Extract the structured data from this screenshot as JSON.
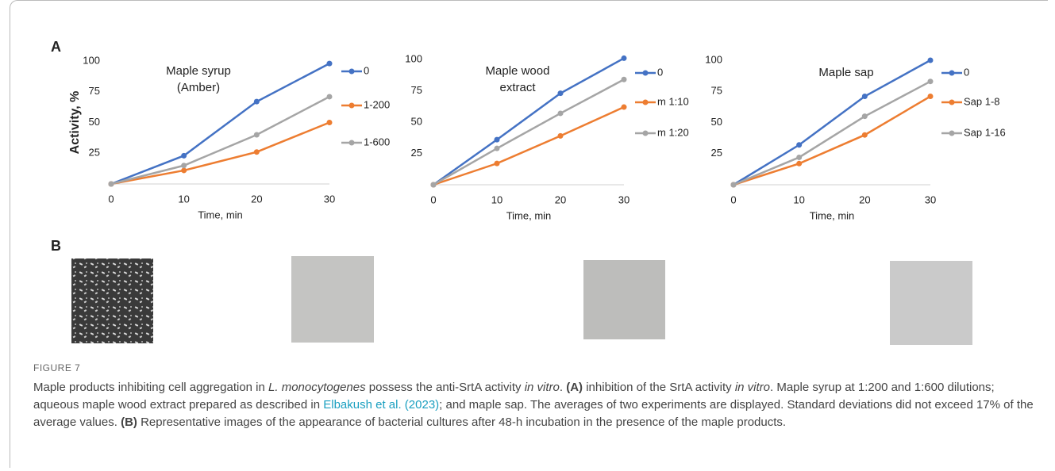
{
  "panel_labels": [
    "A",
    "B"
  ],
  "chart_data": [
    {
      "type": "line",
      "title": [
        "Maple syrup",
        "(Amber)"
      ],
      "ylabel": "Activity, %",
      "xlabel": "Time, min",
      "x": [
        0,
        10,
        20,
        30
      ],
      "xlim": [
        0,
        30
      ],
      "xticks": [
        0,
        10,
        20,
        30
      ],
      "ylim": [
        0,
        100
      ],
      "yticks": [
        25,
        50,
        75,
        100
      ],
      "grid": false,
      "series": [
        {
          "name": "0",
          "color": "#4472c4",
          "values": [
            0,
            23,
            67,
            98
          ]
        },
        {
          "name": "1-200",
          "color": "#ed7d31",
          "values": [
            0,
            11,
            26,
            50
          ]
        },
        {
          "name": "1-600",
          "color": "#a5a5a5",
          "values": [
            0,
            15,
            40,
            71
          ]
        }
      ]
    },
    {
      "type": "line",
      "title": [
        "Maple wood",
        "extract"
      ],
      "xlabel": "Time, min",
      "x": [
        0,
        10,
        20,
        30
      ],
      "xlim": [
        0,
        30
      ],
      "xticks": [
        0,
        10,
        20,
        30
      ],
      "ylim": [
        0,
        100
      ],
      "yticks": [
        25,
        50,
        75,
        100
      ],
      "grid": false,
      "series": [
        {
          "name": "0",
          "color": "#4472c4",
          "values": [
            0,
            36,
            73,
            101
          ]
        },
        {
          "name": "m 1:10",
          "color": "#ed7d31",
          "values": [
            0,
            17,
            39,
            62
          ]
        },
        {
          "name": "m 1:20",
          "color": "#a5a5a5",
          "values": [
            0,
            29,
            57,
            84
          ]
        }
      ]
    },
    {
      "type": "line",
      "title": [
        "Maple sap"
      ],
      "xlabel": "Time, min",
      "x": [
        0,
        10,
        20,
        30
      ],
      "xlim": [
        0,
        30
      ],
      "xticks": [
        0,
        10,
        20,
        30
      ],
      "ylim": [
        0,
        100
      ],
      "yticks": [
        25,
        50,
        75,
        100
      ],
      "grid": false,
      "series": [
        {
          "name": "0",
          "color": "#4472c4",
          "values": [
            0,
            32,
            71,
            100
          ]
        },
        {
          "name": "Sap 1-8",
          "color": "#ed7d31",
          "values": [
            0,
            17,
            40,
            71
          ]
        },
        {
          "name": "Sap 1-16",
          "color": "#a5a5a5",
          "values": [
            0,
            22,
            55,
            83
          ]
        }
      ]
    }
  ],
  "figure_label": "FIGURE 7",
  "caption": [
    "Maple products inhibiting cell aggregation in ",
    "L. monocytogenes",
    " possess the anti-SrtA activity ",
    "in vitro",
    ". ",
    "(A)",
    " inhibition of the SrtA activity ",
    "in vitro",
    ". Maple syrup at 1:200 and 1:600 dilutions; aqueous maple wood extract prepared as described in ",
    "Elbakush et al. (2023)",
    "; and maple sap. The averages of two experiments are displayed. Standard deviations did not exceed 17% of the average values. ",
    "(B)",
    " Representative images of the appearance of bacterial cultures after 48-h incubation in the presence of the maple products."
  ]
}
